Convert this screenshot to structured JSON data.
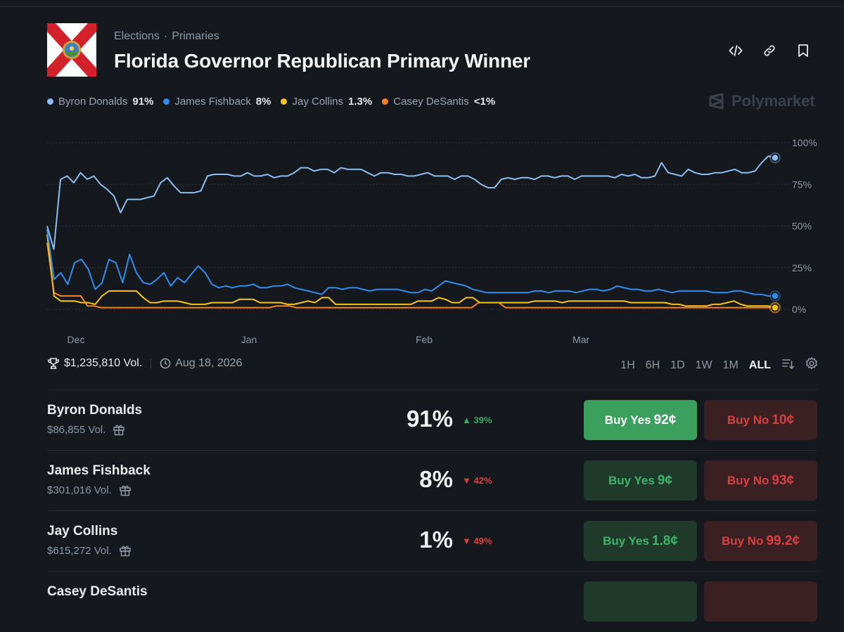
{
  "breadcrumb": [
    "Elections",
    "Primaries"
  ],
  "title": "Florida Governor Republican Primary Winner",
  "legend": [
    {
      "name": "Byron Donalds",
      "pct": "91%",
      "color": "#8bbcf2"
    },
    {
      "name": "James Fishback",
      "pct": "8%",
      "color": "#2f8ef0"
    },
    {
      "name": "Jay Collins",
      "pct": "1.3%",
      "color": "#f5c518"
    },
    {
      "name": "Casey DeSantis",
      "pct": "<1%",
      "color": "#f5821f"
    }
  ],
  "brand": "Polymarket",
  "chart_data": {
    "type": "line",
    "x_labels": [
      "Dec",
      "Jan",
      "Feb",
      "Mar"
    ],
    "y_ticks": [
      "100%",
      "75%",
      "50%",
      "25%",
      "0%"
    ],
    "ylim": [
      0,
      100
    ],
    "grid": true,
    "series": [
      {
        "name": "Byron Donalds",
        "color": "#8bbcf2",
        "values": [
          50,
          36,
          78,
          80,
          76,
          82,
          78,
          80,
          75,
          72,
          68,
          58,
          66,
          66,
          66,
          67,
          68,
          76,
          79,
          74,
          70,
          70,
          70,
          71,
          80,
          81,
          81,
          81,
          80,
          80,
          82,
          80,
          80,
          81,
          79,
          80,
          80,
          82,
          85,
          85,
          83,
          84,
          84,
          82,
          85,
          84,
          84,
          84,
          82,
          80,
          82,
          82,
          81,
          81,
          80,
          80,
          81,
          82,
          80,
          80,
          80,
          78,
          80,
          80,
          78,
          75,
          73,
          73,
          78,
          79,
          78,
          79,
          79,
          78,
          80,
          80,
          79,
          80,
          80,
          78,
          80,
          80,
          80,
          80,
          80,
          79,
          81,
          80,
          81,
          79,
          79,
          80,
          88,
          82,
          81,
          80,
          84,
          82,
          81,
          81,
          82,
          82,
          83,
          84,
          82,
          82,
          83,
          88,
          92,
          91
        ]
      },
      {
        "name": "James Fishback",
        "color": "#2f8ef0",
        "values": [
          48,
          18,
          22,
          15,
          28,
          30,
          24,
          12,
          16,
          30,
          28,
          16,
          33,
          22,
          16,
          15,
          18,
          22,
          14,
          19,
          16,
          21,
          26,
          22,
          15,
          13,
          14,
          13,
          14,
          14,
          15,
          13,
          13,
          14,
          14,
          15,
          13,
          12,
          11,
          10,
          9,
          13,
          13,
          12,
          13,
          13,
          12,
          11,
          12,
          12,
          12,
          12,
          11,
          10,
          10,
          12,
          11,
          14,
          17,
          16,
          15,
          14,
          12,
          11,
          10,
          10,
          10,
          10,
          10,
          10,
          10,
          11,
          11,
          10,
          11,
          11,
          11,
          10,
          11,
          12,
          12,
          11,
          12,
          14,
          13,
          12,
          12,
          11,
          11,
          12,
          11,
          10,
          11,
          11,
          11,
          11,
          11,
          10,
          10,
          10,
          11,
          11,
          10,
          9,
          9,
          8,
          8
        ]
      },
      {
        "name": "Jay Collins",
        "color": "#f5c518",
        "values": [
          45,
          8,
          5,
          5,
          5,
          4,
          4,
          3,
          8,
          11,
          11,
          11,
          11,
          11,
          7,
          4,
          4,
          5,
          5,
          5,
          4,
          3,
          3,
          3,
          4,
          4,
          4,
          4,
          6,
          6,
          6,
          4,
          4,
          4,
          4,
          3,
          3,
          4,
          5,
          4,
          7,
          7,
          3,
          3,
          3,
          3,
          3,
          3,
          3,
          3,
          3,
          3,
          3,
          3,
          5,
          5,
          5,
          7,
          6,
          4,
          4,
          7,
          7,
          4,
          4,
          4,
          4,
          4,
          4,
          4,
          4,
          5,
          5,
          5,
          5,
          4,
          5,
          5,
          5,
          5,
          5,
          5,
          5,
          5,
          5,
          4,
          4,
          4,
          4,
          4,
          4,
          3,
          3,
          2,
          2,
          2,
          2,
          3,
          3,
          4,
          5,
          3,
          2,
          2,
          2,
          2,
          1
        ]
      },
      {
        "name": "Casey DeSantis",
        "color": "#f5821f",
        "values": [
          40,
          10,
          8,
          8,
          8,
          8,
          2,
          2,
          1,
          1,
          1,
          1,
          1,
          1,
          1,
          1,
          1,
          1,
          1,
          1,
          1,
          1,
          1,
          1,
          1,
          1,
          1,
          1,
          1,
          1,
          1,
          1,
          1,
          1,
          2,
          2,
          2,
          1,
          1,
          1,
          1,
          1,
          1,
          1,
          1,
          1,
          1,
          1,
          1,
          1,
          1,
          1,
          1,
          1,
          1,
          1,
          1,
          1,
          1,
          1,
          1,
          1,
          1,
          1,
          4,
          4,
          4,
          4,
          1,
          1,
          1,
          1,
          1,
          1,
          1,
          1,
          1,
          1,
          1,
          1,
          1,
          1,
          1,
          1,
          1,
          1,
          1,
          1,
          1,
          1,
          1,
          1,
          1,
          1,
          1,
          1,
          1,
          1,
          1,
          1,
          1,
          1,
          1,
          1,
          1,
          1,
          1,
          1,
          1
        ]
      }
    ]
  },
  "meta": {
    "volume": "$1,235,810 Vol.",
    "end_date": "Aug 18, 2026"
  },
  "ranges": [
    "1H",
    "6H",
    "1D",
    "1W",
    "1M",
    "ALL"
  ],
  "active_range": "ALL",
  "outcomes": [
    {
      "name": "Byron Donalds",
      "volume": "$86,855 Vol.",
      "prob": "91%",
      "change": "39%",
      "direction": "up",
      "yes_label": "Buy Yes",
      "yes_price": "92¢",
      "no_label": "Buy No",
      "no_price": "10¢"
    },
    {
      "name": "James Fishback",
      "volume": "$301,016 Vol.",
      "prob": "8%",
      "change": "42%",
      "direction": "down",
      "yes_label": "Buy Yes",
      "yes_price": "9¢",
      "no_label": "Buy No",
      "no_price": "93¢"
    },
    {
      "name": "Jay Collins",
      "volume": "$615,272 Vol.",
      "prob": "1%",
      "change": "49%",
      "direction": "down",
      "yes_label": "Buy Yes",
      "yes_price": "1.8¢",
      "no_label": "Buy No",
      "no_price": "99.2¢"
    },
    {
      "name": "Casey DeSantis"
    }
  ]
}
